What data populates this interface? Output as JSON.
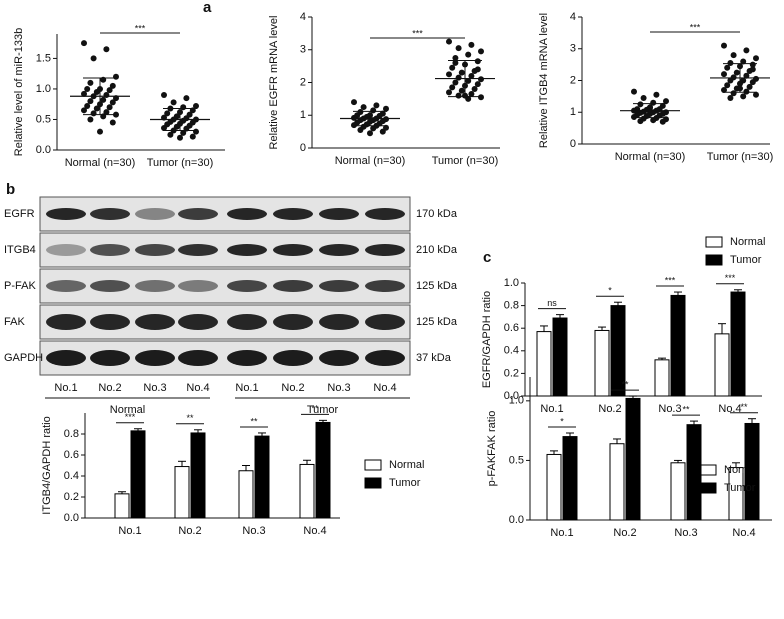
{
  "panel_labels": [
    "a",
    "b",
    "c"
  ],
  "blot": {
    "rows": [
      {
        "label": "EGFR",
        "size": "170 kDa"
      },
      {
        "label": "ITGB4",
        "size": "210 kDa"
      },
      {
        "label": "P-FAK",
        "size": "125 kDa"
      },
      {
        "label": "FAK",
        "size": "125 kDa"
      },
      {
        "label": "GAPDH",
        "size": "37 kDa"
      }
    ],
    "lanes": [
      "No.1",
      "No.2",
      "No.3",
      "No.4",
      "No.1",
      "No.2",
      "No.3",
      "No.4"
    ],
    "groups": [
      "Normal",
      "Tumor"
    ]
  },
  "chart_data": [
    {
      "type": "strip",
      "ylabel": "Relative level of miR-133b",
      "categories": [
        "Normal (n=30)",
        "Tumor (n=30)"
      ],
      "color": "#111111",
      "ylim": [
        0,
        1.9
      ],
      "yticks": [
        {
          "value": 0,
          "label": "0.0"
        },
        0.5,
        {
          "value": 1,
          "label": "1.0"
        },
        1.5
      ],
      "significance": "***",
      "groups": [
        {
          "values": [
            1.75,
            1.65,
            1.5,
            1.2,
            1.15,
            1.1,
            1.05,
            1.0,
            1.0,
            0.98,
            0.95,
            0.92,
            0.9,
            0.88,
            0.85,
            0.82,
            0.8,
            0.78,
            0.75,
            0.72,
            0.7,
            0.68,
            0.65,
            0.62,
            0.6,
            0.58,
            0.55,
            0.5,
            0.45,
            0.3
          ],
          "mean": 0.88,
          "sd": 0.3
        },
        {
          "values": [
            0.9,
            0.85,
            0.78,
            0.72,
            0.7,
            0.68,
            0.65,
            0.62,
            0.6,
            0.58,
            0.55,
            0.53,
            0.52,
            0.5,
            0.5,
            0.48,
            0.46,
            0.45,
            0.43,
            0.42,
            0.4,
            0.38,
            0.36,
            0.35,
            0.32,
            0.3,
            0.28,
            0.25,
            0.22,
            0.2
          ],
          "mean": 0.5,
          "sd": 0.18
        }
      ]
    },
    {
      "type": "strip",
      "ylabel": "Relative EGFR mRNA level",
      "categories": [
        "Normal (n=30)",
        "Tumor (n=30)"
      ],
      "color": "#111111",
      "ylim": [
        0,
        4
      ],
      "yticks": [
        0,
        1,
        2,
        3,
        4
      ],
      "significance": "***",
      "groups": [
        {
          "values": [
            1.4,
            1.3,
            1.25,
            1.2,
            1.15,
            1.1,
            1.05,
            1.0,
            1.0,
            0.98,
            0.95,
            0.92,
            0.9,
            0.9,
            0.88,
            0.85,
            0.85,
            0.82,
            0.8,
            0.78,
            0.75,
            0.72,
            0.7,
            0.68,
            0.65,
            0.62,
            0.6,
            0.55,
            0.5,
            0.45
          ],
          "mean": 0.9,
          "sd": 0.22
        },
        {
          "values": [
            3.25,
            3.15,
            3.05,
            2.95,
            2.85,
            2.75,
            2.65,
            2.55,
            2.45,
            2.35,
            2.3,
            2.25,
            2.2,
            2.15,
            2.1,
            2.05,
            2.0,
            1.95,
            1.9,
            1.85,
            1.8,
            1.75,
            1.7,
            1.65,
            1.6,
            1.55,
            1.5,
            2.6,
            2.4,
            1.6
          ],
          "mean": 2.12,
          "sd": 0.55
        }
      ]
    },
    {
      "type": "strip",
      "ylabel": "Relative ITGB4 mRNA level",
      "categories": [
        "Normal (n=30)",
        "Tumor (n=30)"
      ],
      "color": "#111111",
      "ylim": [
        0,
        4
      ],
      "yticks": [
        0,
        1,
        2,
        3,
        4
      ],
      "significance": "***",
      "groups": [
        {
          "values": [
            1.65,
            1.55,
            1.45,
            1.35,
            1.3,
            1.25,
            1.2,
            1.15,
            1.1,
            1.1,
            1.08,
            1.05,
            1.05,
            1.02,
            1.0,
            1.0,
            0.98,
            0.95,
            0.95,
            0.92,
            0.9,
            0.88,
            0.85,
            0.82,
            0.8,
            0.78,
            0.75,
            0.72,
            0.7,
            1.15
          ],
          "mean": 1.05,
          "sd": 0.22
        },
        {
          "values": [
            3.1,
            2.95,
            2.8,
            2.7,
            2.6,
            2.55,
            2.5,
            2.45,
            2.4,
            2.3,
            2.25,
            2.2,
            2.15,
            2.1,
            2.05,
            2.0,
            2.0,
            1.95,
            1.9,
            1.85,
            1.8,
            1.75,
            1.7,
            1.65,
            1.6,
            1.55,
            1.5,
            1.45,
            2.35,
            1.75
          ],
          "mean": 2.08,
          "sd": 0.45
        }
      ]
    },
    {
      "type": "bar",
      "ylabel": "EGFR/GAPDH ratio",
      "categories": [
        "No.1",
        "No.2",
        "No.3",
        "No.4"
      ],
      "ylim": [
        0,
        1
      ],
      "yticks": [
        {
          "value": 0,
          "label": "0.0"
        },
        0.2,
        0.4,
        0.6,
        0.8,
        {
          "value": 1,
          "label": "1.0"
        }
      ],
      "significance": [
        "ns",
        "*",
        "***",
        "***"
      ],
      "series": [
        {
          "name": "Normal",
          "color": "#ffffff",
          "values": [
            0.57,
            0.58,
            0.32,
            0.55
          ],
          "errors": [
            0.05,
            0.03,
            0.015,
            0.09
          ]
        },
        {
          "name": "Tumor",
          "color": "#000000",
          "values": [
            0.69,
            0.8,
            0.89,
            0.92
          ],
          "errors": [
            0.03,
            0.03,
            0.03,
            0.02
          ]
        }
      ]
    },
    {
      "type": "bar",
      "ylabel": "ITGB4/GAPDH ratio",
      "categories": [
        "No.1",
        "No.2",
        "No.3",
        "No.4"
      ],
      "ylim": [
        0,
        1
      ],
      "yticks": [
        {
          "value": 0,
          "label": "0.0"
        },
        0.2,
        0.4,
        0.6,
        0.8
      ],
      "significance": [
        "***",
        "**",
        "**",
        "**"
      ],
      "series": [
        {
          "name": "Normal",
          "color": "#ffffff",
          "values": [
            0.23,
            0.49,
            0.45,
            0.51
          ],
          "errors": [
            0.02,
            0.05,
            0.05,
            0.04
          ]
        },
        {
          "name": "Tumor",
          "color": "#000000",
          "values": [
            0.83,
            0.81,
            0.78,
            0.91
          ],
          "errors": [
            0.02,
            0.03,
            0.03,
            0.02
          ]
        }
      ]
    },
    {
      "type": "bar",
      "ylabel": "p-FAKFAK ratio",
      "categories": [
        "No.1",
        "No.2",
        "No.3",
        "No.4"
      ],
      "ylim": [
        0,
        1.2
      ],
      "yticks": [
        {
          "value": 0,
          "label": "0.0"
        },
        0.5,
        {
          "value": 1,
          "label": "1.0"
        }
      ],
      "significance": [
        "*",
        "**",
        "**",
        "**"
      ],
      "series": [
        {
          "name": "Normal",
          "color": "#ffffff",
          "values": [
            0.55,
            0.64,
            0.48,
            0.44
          ],
          "errors": [
            0.03,
            0.04,
            0.02,
            0.04
          ]
        },
        {
          "name": "Tumor",
          "color": "#000000",
          "values": [
            0.7,
            1.02,
            0.8,
            0.81
          ],
          "errors": [
            0.03,
            0.02,
            0.03,
            0.04
          ]
        }
      ]
    }
  ]
}
